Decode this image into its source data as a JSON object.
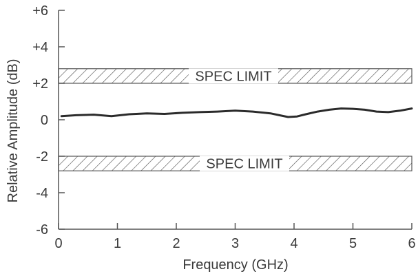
{
  "chart_data": {
    "type": "line",
    "xlabel": "Frequency (GHz)",
    "ylabel": "Relative Amplitude (dB)",
    "xlim": [
      0,
      6
    ],
    "ylim": [
      -6,
      6
    ],
    "x_ticks": [
      "0",
      "1",
      "2",
      "3",
      "4",
      "5",
      "6"
    ],
    "y_ticks": [
      "+6",
      "+4",
      "+2",
      "0",
      "-2",
      "-4",
      "-6"
    ],
    "grid": false,
    "spec_limits": [
      {
        "label": "SPEC LIMIT",
        "from": 2.0,
        "to": 2.8
      },
      {
        "label": "SPEC LIMIT",
        "from": -2.8,
        "to": -2.0
      }
    ],
    "series": [
      {
        "color": "#2b2b2b",
        "x": [
          0.05,
          0.3,
          0.6,
          0.9,
          1.2,
          1.5,
          1.8,
          2.1,
          2.4,
          2.7,
          3.0,
          3.3,
          3.6,
          3.75,
          3.9,
          4.05,
          4.2,
          4.4,
          4.6,
          4.8,
          5.0,
          5.2,
          5.4,
          5.6,
          5.8,
          6.0
        ],
        "y": [
          0.2,
          0.25,
          0.28,
          0.2,
          0.3,
          0.35,
          0.32,
          0.38,
          0.42,
          0.45,
          0.5,
          0.45,
          0.35,
          0.25,
          0.15,
          0.18,
          0.3,
          0.45,
          0.55,
          0.62,
          0.6,
          0.55,
          0.45,
          0.42,
          0.5,
          0.62
        ]
      }
    ]
  }
}
